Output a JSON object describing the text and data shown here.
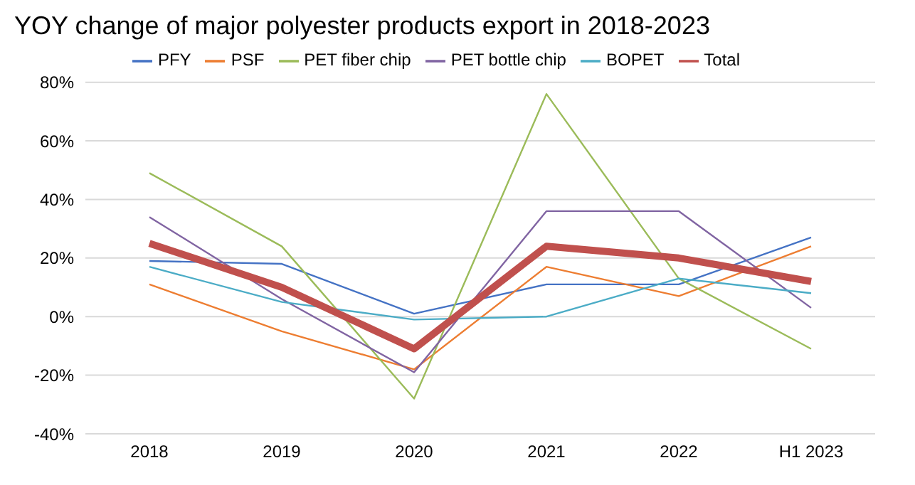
{
  "chart_data": {
    "type": "line",
    "title": "YOY change of major polyester products export in 2018-2023",
    "categories": [
      "2018",
      "2019",
      "2020",
      "2021",
      "2022",
      "H1 2023"
    ],
    "series": [
      {
        "name": "PFY",
        "color": "#4472c4",
        "values": [
          19,
          18,
          1,
          11,
          11,
          27
        ]
      },
      {
        "name": "PSF",
        "color": "#ed7d31",
        "values": [
          11,
          -5,
          -18,
          17,
          7,
          24
        ]
      },
      {
        "name": "PET fiber chip",
        "color": "#9bbb59",
        "values": [
          49,
          24,
          -28,
          76,
          13,
          -11
        ]
      },
      {
        "name": "PET bottle chip",
        "color": "#8064a2",
        "values": [
          34,
          6,
          -19,
          36,
          36,
          3
        ]
      },
      {
        "name": "BOPET",
        "color": "#4bacc6",
        "values": [
          17,
          5,
          -1,
          0,
          13,
          8
        ]
      },
      {
        "name": "Total",
        "color": "#c0504d",
        "values": [
          25,
          10,
          -11,
          24,
          20,
          12
        ]
      }
    ],
    "ylim": [
      -40,
      80
    ],
    "yticks": [
      {
        "value": -40,
        "label": "-40%"
      },
      {
        "value": -20,
        "label": "-20%"
      },
      {
        "value": 0,
        "label": "0%"
      },
      {
        "value": 20,
        "label": "20%"
      },
      {
        "value": 40,
        "label": "40%"
      },
      {
        "value": 60,
        "label": "60%"
      },
      {
        "value": 80,
        "label": "80%"
      }
    ],
    "grid": "y",
    "legend": "top",
    "marker": "none"
  }
}
